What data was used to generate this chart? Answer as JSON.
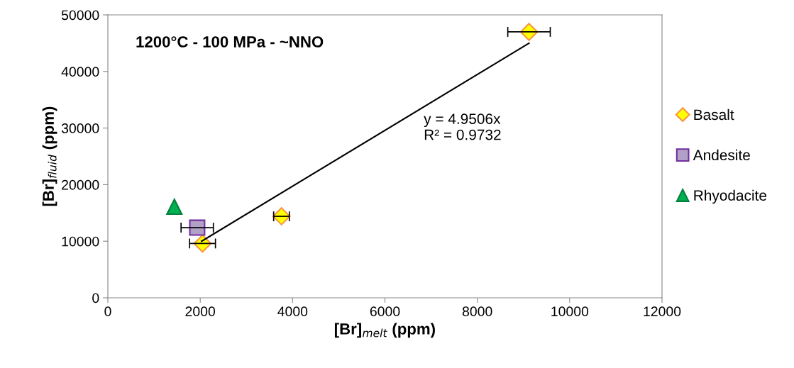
{
  "chart_data": {
    "type": "scatter",
    "xlabel": "[Br]$_{melt}$ (ppm)",
    "ylabel": "[Br]$_{fluid}$ (ppm)",
    "xlim": [
      0,
      12000
    ],
    "xticks": [
      0,
      2000,
      4000,
      6000,
      8000,
      10000,
      12000
    ],
    "ylim": [
      0,
      50000
    ],
    "yticks": [
      0,
      10000,
      20000,
      30000,
      40000,
      50000
    ],
    "grid": false,
    "legend": "right",
    "annotations": [
      "1200°C - 100 MPa - ~NNO",
      "y = 4.9506x\nR² = 0.9732"
    ],
    "series": [
      {
        "name": "Basalt",
        "color": "#ffff00",
        "marker": "diamond",
        "x": [
          2050,
          3760,
          9120
        ],
        "values": [
          9600,
          14400,
          47000
        ],
        "xerrors": [
          280,
          170,
          460
        ]
      },
      {
        "name": "Andesite",
        "color": "#b2a1c7",
        "marker": "square",
        "x": [
          1935
        ],
        "values": [
          12400
        ],
        "xerrors": [
          350
        ]
      },
      {
        "name": "Rhyodacite",
        "color": "#00b050",
        "marker": "triangle",
        "x": [
          1440
        ],
        "values": [
          16100
        ]
      },
      {
        "type": "line",
        "color": "#000000",
        "marker": "none",
        "x": [
          2030,
          9120
        ],
        "values": [
          10000,
          45000
        ]
      }
    ]
  }
}
